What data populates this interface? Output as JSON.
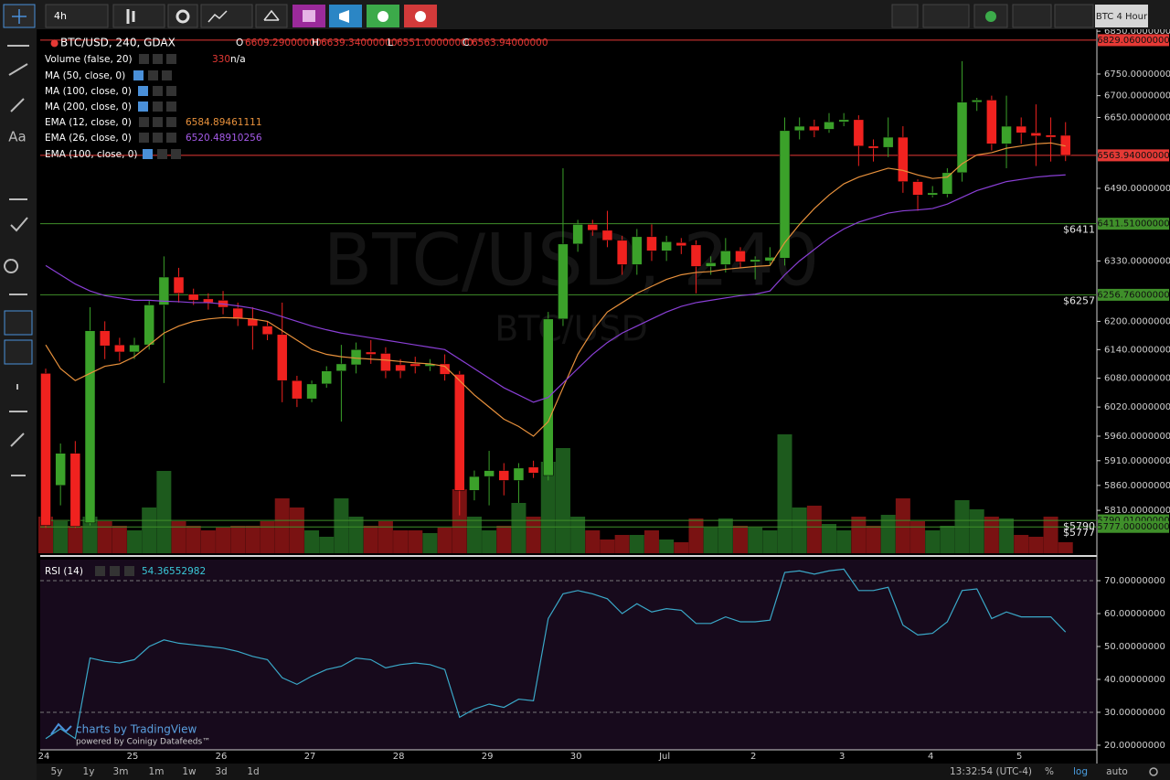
{
  "toolbar": {
    "interval": "4h",
    "symbol_button": "BTC 4 Hour",
    "font_tool": "Aa"
  },
  "legend": {
    "symbol": "BTC/USD, 240, GDAX",
    "open_key": "O",
    "open": "6609.29000000",
    "high_key": "H",
    "high": "6639.34000000",
    "low_key": "L",
    "low": "6551.00000000",
    "close_key": "C",
    "close": "6563.94000000"
  },
  "indicators": [
    {
      "name": "Volume (false, 20)",
      "value": "330",
      "extra": "n/a"
    },
    {
      "name": "MA (50, close, 0)"
    },
    {
      "name": "MA (100, close, 0)"
    },
    {
      "name": "MA (200, close, 0)"
    },
    {
      "name": "EMA (12, close, 0)",
      "value": "6584.89461111"
    },
    {
      "name": "EMA (26, close, 0)",
      "value": "6520.48910256"
    },
    {
      "name": "EMA (100, close, 0)"
    }
  ],
  "watermark": [
    "BTC/USD, 240",
    "BTC/USD"
  ],
  "chart_data": [
    {
      "type": "candlestick",
      "title": "BTC/USD, 240, GDAX",
      "log_scale": true,
      "ylim": [
        5725,
        6859
      ],
      "yticks": [
        {
          "value": 6850,
          "label": "6850.00000000"
        },
        {
          "value": 6750,
          "label": "6750.00000000"
        },
        {
          "value": 6700,
          "label": "6700.00000000"
        },
        {
          "value": 6650,
          "label": "6650.00000000"
        },
        {
          "value": 6490,
          "label": "6490.00000000"
        },
        {
          "value": 6330,
          "label": "6330.00000000"
        },
        {
          "value": 6200,
          "label": "6200.00000000"
        },
        {
          "value": 6140,
          "label": "6140.00000000"
        },
        {
          "value": 6080,
          "label": "6080.00000000"
        },
        {
          "value": 6020,
          "label": "6020.00000000"
        },
        {
          "value": 5960,
          "label": "5960.00000000"
        },
        {
          "value": 5910,
          "label": "5910.00000000"
        },
        {
          "value": 5860,
          "label": "5860.00000000"
        },
        {
          "value": 5810,
          "label": "5810.00000000"
        }
      ],
      "up_color": "#3ba12a",
      "down_color": "#f0221f",
      "volume_up_color": "#1d5a1d",
      "volume_down_color": "#7a1212",
      "open": [
        6090,
        5860,
        5925,
        5785,
        6180,
        6150,
        6135,
        6150,
        6235,
        6295,
        6258,
        6248,
        6245,
        6228,
        6205,
        6190,
        6172,
        6075,
        6037,
        6068,
        6095,
        6108,
        6135,
        6132,
        6108,
        6110,
        6105,
        6110,
        6088,
        5850,
        5878,
        5890,
        5870,
        5897,
        5880,
        6205,
        6367,
        6410,
        6397,
        6375,
        6322,
        6383,
        6352,
        6370,
        6365,
        6318,
        6322,
        6352,
        6328,
        6330,
        6336,
        6620,
        6630,
        6623,
        6640,
        6645,
        6585,
        6582,
        6605,
        6505,
        6475,
        6477,
        6525,
        6685,
        6690,
        6590,
        6630,
        6615,
        6610,
        6609.29
      ],
      "high": [
        6100,
        5945,
        5950,
        6230,
        6200,
        6165,
        6165,
        6245,
        6340,
        6315,
        6270,
        6260,
        6265,
        6240,
        6230,
        6200,
        6240,
        6085,
        6075,
        6105,
        6150,
        6155,
        6160,
        6145,
        6120,
        6125,
        6120,
        6130,
        6095,
        5890,
        5930,
        5905,
        5905,
        5910,
        6220,
        6535,
        6420,
        6420,
        6440,
        6385,
        6400,
        6410,
        6385,
        6380,
        6375,
        6340,
        6380,
        6360,
        6340,
        6360,
        6650,
        6650,
        6645,
        6660,
        6660,
        6655,
        6600,
        6650,
        6630,
        6510,
        6495,
        6535,
        6780,
        6695,
        6700,
        6700,
        6650,
        6680,
        6650,
        6639.34
      ],
      "low": [
        5775,
        5820,
        5775,
        5780,
        6120,
        6115,
        6120,
        6140,
        6070,
        6240,
        6235,
        6225,
        6215,
        6190,
        6140,
        6160,
        6030,
        6020,
        6030,
        6060,
        5990,
        6090,
        6110,
        6080,
        6080,
        6090,
        6095,
        6075,
        5800,
        5830,
        5820,
        5840,
        5825,
        5875,
        5870,
        6190,
        6350,
        6385,
        6360,
        6300,
        6300,
        6330,
        6330,
        6345,
        6260,
        6300,
        6305,
        6315,
        6290,
        6320,
        6320,
        6600,
        6605,
        6615,
        6630,
        6540,
        6550,
        6560,
        6480,
        6440,
        6470,
        6470,
        6505,
        6665,
        6575,
        6535,
        6590,
        6540,
        6550,
        6551
      ],
      "close": [
        5780,
        5925,
        5778,
        6180,
        6148,
        6135,
        6150,
        6235,
        6295,
        6260,
        6245,
        6240,
        6230,
        6205,
        6190,
        6172,
        6075,
        6037,
        6068,
        6095,
        6110,
        6140,
        6130,
        6095,
        6095,
        6105,
        6110,
        6088,
        5850,
        5878,
        5890,
        5870,
        5895,
        5885,
        6205,
        6367,
        6410,
        6397,
        6375,
        6322,
        6383,
        6352,
        6372,
        6363,
        6318,
        6326,
        6352,
        6328,
        6333,
        6338,
        6620,
        6630,
        6620,
        6640,
        6645,
        6585,
        6580,
        6605,
        6505,
        6475,
        6480,
        6525,
        6685,
        6690,
        6590,
        6630,
        6615,
        6608,
        6605,
        6563.94
      ],
      "volume": [
        40,
        35,
        30,
        40,
        35,
        30,
        25,
        50,
        90,
        35,
        30,
        25,
        28,
        30,
        30,
        35,
        60,
        50,
        25,
        18,
        60,
        40,
        30,
        35,
        25,
        25,
        22,
        28,
        70,
        40,
        25,
        30,
        55,
        40,
        100,
        115,
        40,
        25,
        15,
        20,
        20,
        25,
        15,
        12,
        38,
        28,
        38,
        30,
        28,
        25,
        130,
        50,
        52,
        32,
        25,
        40,
        30,
        42,
        60,
        35,
        25,
        30,
        58,
        48,
        40,
        38,
        20,
        18,
        40,
        12
      ],
      "series": [
        {
          "name": "EMA (12, close, 0)",
          "color": "#e8913c",
          "values": [
            6150,
            6100,
            6075,
            6090,
            6105,
            6110,
            6125,
            6150,
            6175,
            6190,
            6200,
            6205,
            6208,
            6207,
            6205,
            6200,
            6180,
            6160,
            6140,
            6130,
            6125,
            6122,
            6120,
            6118,
            6115,
            6112,
            6110,
            6105,
            6075,
            6045,
            6020,
            5995,
            5980,
            5960,
            5990,
            6060,
            6130,
            6180,
            6220,
            6240,
            6260,
            6275,
            6290,
            6300,
            6305,
            6307,
            6312,
            6315,
            6318,
            6320,
            6370,
            6410,
            6445,
            6475,
            6500,
            6515,
            6525,
            6535,
            6530,
            6520,
            6512,
            6515,
            6545,
            6565,
            6570,
            6580,
            6585,
            6590,
            6592,
            6585
          ]
        },
        {
          "name": "EMA (26, close, 0)",
          "color": "#8a3fd6",
          "values": [
            6320,
            6300,
            6280,
            6265,
            6255,
            6250,
            6245,
            6245,
            6243,
            6242,
            6240,
            6240,
            6237,
            6233,
            6228,
            6220,
            6210,
            6200,
            6190,
            6182,
            6175,
            6170,
            6165,
            6160,
            6155,
            6150,
            6145,
            6140,
            6120,
            6100,
            6080,
            6060,
            6045,
            6030,
            6040,
            6070,
            6100,
            6130,
            6155,
            6175,
            6190,
            6205,
            6220,
            6232,
            6240,
            6245,
            6250,
            6255,
            6258,
            6265,
            6300,
            6330,
            6355,
            6380,
            6400,
            6415,
            6425,
            6435,
            6440,
            6442,
            6445,
            6455,
            6470,
            6485,
            6495,
            6505,
            6510,
            6515,
            6518,
            6520
          ]
        }
      ],
      "price_lines": [
        {
          "value": 6829.06,
          "label": "6829.06000000",
          "color": "#e53935"
        },
        {
          "value": 6563.94,
          "label": "6563.94000000",
          "color": "#e53935"
        },
        {
          "value": 6411.51,
          "label": "6411.51000000",
          "color": "#3f8f2a",
          "tag": "$6411"
        },
        {
          "value": 6256.76,
          "label": "6256.76000000",
          "color": "#3f8f2a",
          "tag": "$6257"
        },
        {
          "value": 5790.01,
          "label": "5790.01000000",
          "color": "#3f8f2a",
          "tag": "$5790"
        },
        {
          "value": 5777,
          "label": "5777.00000000",
          "color": "#3f8f2a",
          "tag": "$5777"
        }
      ]
    },
    {
      "type": "line",
      "name": "RSI (14)",
      "value_label": "54.36552982",
      "color": "#3aa8c8",
      "ylim": [
        18.6,
        76.4
      ],
      "yticks": [
        {
          "value": 70,
          "label": "70.00000000"
        },
        {
          "value": 60,
          "label": "60.00000000"
        },
        {
          "value": 50,
          "label": "50.00000000"
        },
        {
          "value": 40,
          "label": "40.00000000"
        },
        {
          "value": 30,
          "label": "30.00000000"
        },
        {
          "value": 20,
          "label": "20.00000000"
        }
      ],
      "levels": [
        70,
        30
      ],
      "values": [
        22,
        25,
        22,
        46.5,
        45.5,
        45,
        46,
        50,
        52,
        51,
        50.5,
        50,
        49.5,
        48.5,
        47,
        46,
        40.5,
        38.5,
        41,
        43,
        44,
        46.5,
        46,
        43.5,
        44.5,
        45,
        44.5,
        43,
        28.5,
        31,
        32.5,
        31.5,
        34,
        33.5,
        58.5,
        66,
        67,
        66,
        64.5,
        60,
        63,
        60.5,
        61.5,
        61,
        57,
        57,
        59,
        57.5,
        57.5,
        58,
        72.5,
        73,
        72,
        73,
        73.5,
        67,
        67,
        68,
        56.5,
        53.5,
        54,
        57.5,
        67,
        67.5,
        58.5,
        60.5,
        59,
        59,
        59,
        54.4
      ]
    }
  ],
  "time_axis": [
    "24",
    "25",
    "26",
    "27",
    "28",
    "29",
    "30",
    "Jul",
    "2",
    "3",
    "4",
    "5"
  ],
  "branding": {
    "line1": "charts by TradingView",
    "line2": "powered by Coinigy Datafeeds™"
  },
  "footer": {
    "ranges": [
      "5y",
      "1y",
      "3m",
      "1m",
      "1w",
      "3d",
      "1d"
    ],
    "clock": "13:32:54 (UTC-4)",
    "percent": "%",
    "log": "log",
    "auto": "auto"
  }
}
